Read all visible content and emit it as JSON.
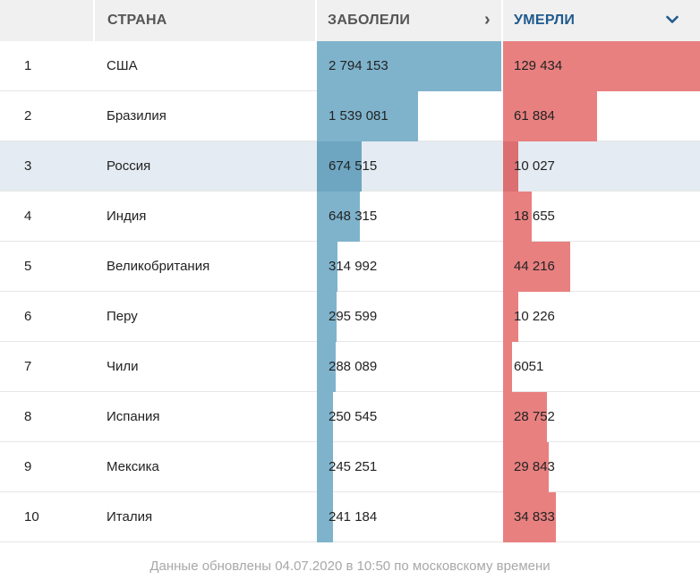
{
  "header": {
    "country_label": "СТРАНА",
    "cases_label": "ЗАБОЛЕЛИ",
    "deaths_label": "УМЕРЛИ",
    "cases_sort_icon": "chevron-right-icon",
    "deaths_sort_icon": "chevron-down-icon"
  },
  "colors": {
    "cases_bar": "#7fb3cc",
    "deaths_bar": "#e98080",
    "active_header": "#1f5a8e",
    "highlight_row": "#e4ebf2"
  },
  "rows": [
    {
      "rank": "1",
      "country": "США",
      "cases": "2 794 153",
      "deaths": "129 434"
    },
    {
      "rank": "2",
      "country": "Бразилия",
      "cases": "1 539 081",
      "deaths": "61 884"
    },
    {
      "rank": "3",
      "country": "Россия",
      "cases": "674 515",
      "deaths": "10 027"
    },
    {
      "rank": "4",
      "country": "Индия",
      "cases": "648 315",
      "deaths": "18 655"
    },
    {
      "rank": "5",
      "country": "Великобритания",
      "cases": "314 992",
      "deaths": "44 216"
    },
    {
      "rank": "6",
      "country": "Перу",
      "cases": "295 599",
      "deaths": "10 226"
    },
    {
      "rank": "7",
      "country": "Чили",
      "cases": "288 089",
      "deaths": "6051"
    },
    {
      "rank": "8",
      "country": "Испания",
      "cases": "250 545",
      "deaths": "28 752"
    },
    {
      "rank": "9",
      "country": "Мексика",
      "cases": "245 251",
      "deaths": "29 843"
    },
    {
      "rank": "10",
      "country": "Италия",
      "cases": "241 184",
      "deaths": "34 833"
    }
  ],
  "highlighted_row": 3,
  "footer": {
    "note": "Данные обновлены 04.07.2020 в 10:50 по московскому времени"
  }
}
